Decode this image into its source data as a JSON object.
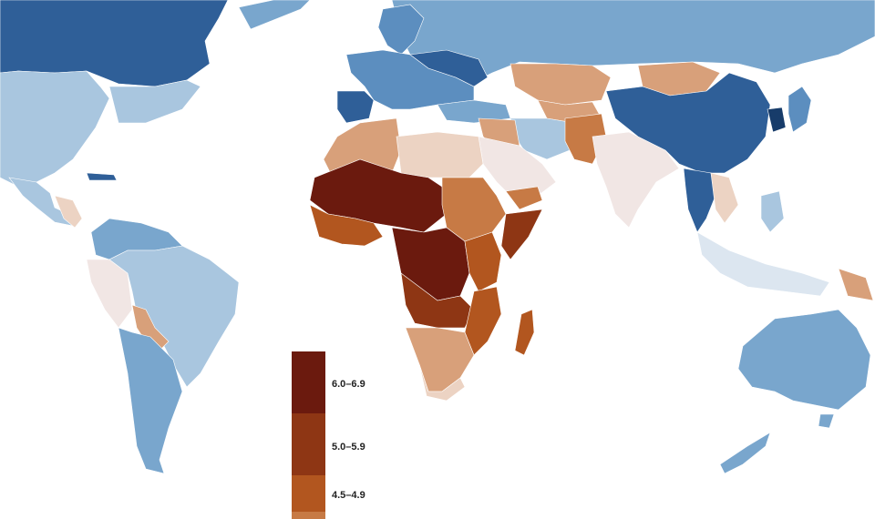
{
  "legend": {
    "classes": [
      {
        "label": "6.0–6.9",
        "color": "#6b1a0e"
      },
      {
        "label": "5.0–5.9",
        "color": "#8e3614"
      },
      {
        "label": "4.5–4.9",
        "color": "#b2561f"
      },
      {
        "label": "",
        "color": "#c77a45"
      }
    ]
  },
  "palette": {
    "c6": "#6b1a0e",
    "c5": "#8e3614",
    "c45": "#b2561f",
    "c4": "#c77a45",
    "c3": "#d8a07a",
    "c2": "#ecd3c3",
    "c1": "#f1e6e4",
    "b1": "#dce6f0",
    "b2": "#a9c6df",
    "b3": "#79a6cd",
    "b4": "#5c8ebf",
    "b5": "#2f5f98",
    "b6": "#173c6a"
  }
}
